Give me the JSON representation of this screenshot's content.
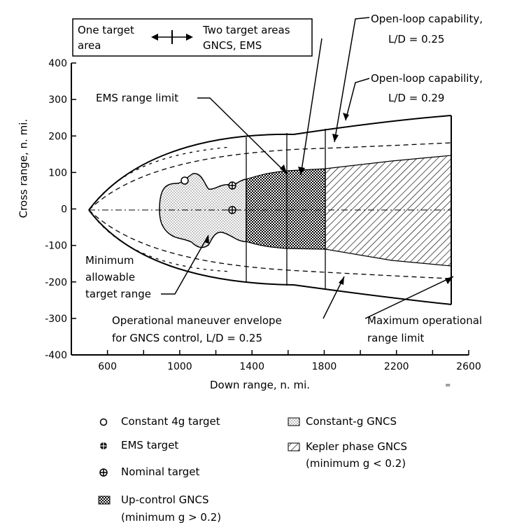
{
  "chart_data": {
    "type": "area",
    "title": "",
    "xlabel": "Down range, n. mi.",
    "ylabel": "Cross range, n. mi.",
    "xlim": [
      400,
      2600
    ],
    "ylim": [
      -400,
      400
    ],
    "x_ticks": [
      "600",
      "1000",
      "1400",
      "1800",
      "2200",
      "2600"
    ],
    "y_ticks": [
      "400",
      "300",
      "200",
      "100",
      "0",
      "-100",
      "-200",
      "-300",
      "-400"
    ],
    "series": [
      {
        "name": "Open-loop capability, L/D = 0.29",
        "style": "solid",
        "x": [
          500,
          700,
          1000,
          1400,
          1800,
          2200,
          2500
        ],
        "y": [
          0,
          95,
          150,
          195,
          230,
          255,
          265
        ]
      },
      {
        "name": "Open-loop capability, L/D = 0.25",
        "style": "dashed",
        "x": [
          500,
          700,
          1000,
          1400,
          1800,
          2200,
          2500
        ],
        "y": [
          0,
          75,
          120,
          150,
          170,
          182,
          190
        ]
      },
      {
        "name": "Operational maneuver envelope for GNCS control, L/D = 0.25",
        "style": "solid",
        "x": [
          500,
          700,
          1000,
          1300,
          1600,
          2000,
          2500
        ],
        "y": [
          0,
          80,
          130,
          160,
          170,
          175,
          178
        ]
      }
    ],
    "regions": [
      {
        "name": "Constant-g GNCS",
        "x_range": [
          890,
          1370
        ]
      },
      {
        "name": "Up-control GNCS (minimum g > 0.2)",
        "x_range": [
          1370,
          1800
        ]
      },
      {
        "name": "Kepler phase GNCS (minimum g < 0.2)",
        "x_range": [
          1800,
          2500
        ]
      }
    ],
    "vertical_lines": [
      {
        "name": "EMS range limit",
        "x": 1600
      },
      {
        "name": "Maximum operational range limit",
        "x": 2500
      },
      {
        "name": "target area division",
        "x": 1370
      },
      {
        "name": "target area division",
        "x": 1800
      }
    ],
    "targets": [
      {
        "name": "Constant 4g target",
        "x": 1030,
        "y": 85
      },
      {
        "name": "EMS target",
        "x": 1290,
        "y": 70
      },
      {
        "name": "Nominal target",
        "x": 1290,
        "y": 0
      }
    ],
    "annotations": {
      "box_one_target": "One target",
      "box_area": "area",
      "box_two_targets": "Two target areas",
      "box_gncs_ems": "GNCS, EMS",
      "open_loop_025_line1": "Open-loop capability,",
      "open_loop_025_line2": "L/D = 0.25",
      "open_loop_029_line1": "Open-loop capability,",
      "open_loop_029_line2": "L/D = 0.29",
      "ems_range_limit": "EMS range limit",
      "min_target_line1": "Minimum",
      "min_target_line2": "allowable",
      "min_target_line3": "target range",
      "op_envelope_line1": "Operational maneuver envelope",
      "op_envelope_line2": "for GNCS control,  L/D = 0.25",
      "max_range_line1": "Maximum operational",
      "max_range_line2": "range limit"
    },
    "legend": {
      "constant_4g": "Constant 4g target",
      "ems_target": "EMS target",
      "nominal_target": "Nominal target",
      "up_control_line1": "Up-control GNCS",
      "up_control_line2": "(minimum g > 0.2)",
      "constant_g": "Constant-g GNCS",
      "kepler_line1": "Kepler phase GNCS",
      "kepler_line2": "(minimum g < 0.2)"
    },
    "stray_mark": "="
  }
}
